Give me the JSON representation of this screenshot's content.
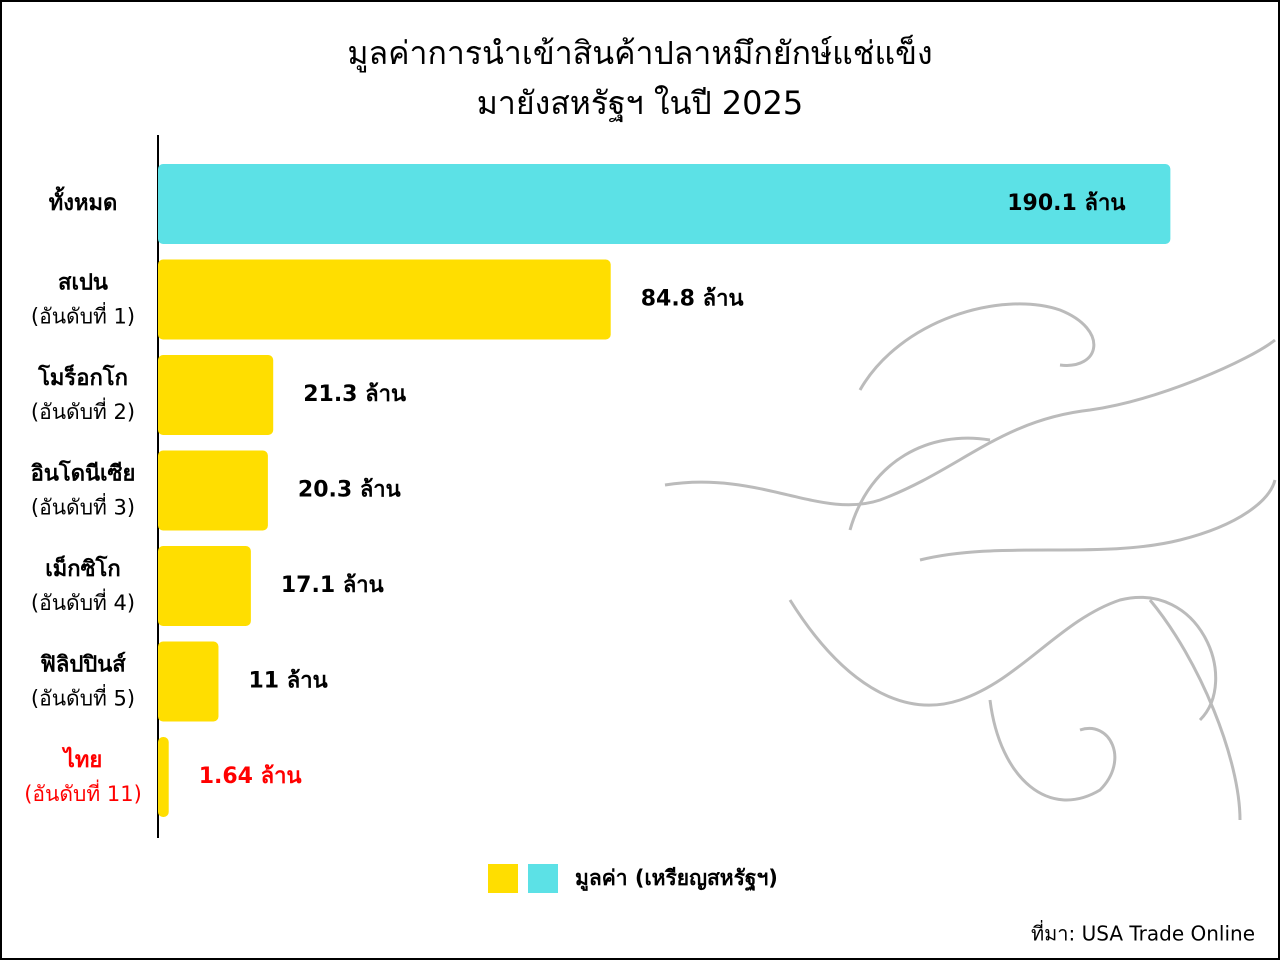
{
  "chart_data": {
    "type": "hbar",
    "title": [
      "มูลค่าการนำเข้าสินค้าปลาหมึกยักษ์แช่แข็ง",
      "มายังสหรัฐฯ ในปี 2025"
    ],
    "categories": [
      "ทั้งหมด",
      "สเปน",
      "โมร็อกโก",
      "อินโดนีเซีย",
      "เม็กซิโก",
      "ฟิลิปปินส์",
      "ไทย"
    ],
    "ranks": [
      null,
      "(อันดับที่ 1)",
      "(อันดับที่ 2)",
      "(อันดับที่ 3)",
      "(อันดับที่ 4)",
      "(อันดับที่ 5)",
      "(อันดับที่ 11)"
    ],
    "values": [
      190.1,
      84.8,
      21.3,
      20.3,
      17.1,
      11,
      1.64
    ],
    "value_labels": [
      "190.1 ล้าน",
      "84.8 ล้าน",
      "21.3 ล้าน",
      "20.3 ล้าน",
      "17.1 ล้าน",
      "11 ล้าน",
      "1.64 ล้าน"
    ],
    "colors": [
      "#5ce1e6",
      "#ffde00",
      "#ffde00",
      "#ffde00",
      "#ffde00",
      "#ffde00",
      "#ffde00"
    ],
    "label_colors": [
      "#000000",
      "#000000",
      "#000000",
      "#000000",
      "#000000",
      "#000000",
      "#ff0000"
    ],
    "xlim": [
      0,
      200
    ],
    "legend": {
      "colors": [
        "#ffde00",
        "#5ce1e6"
      ],
      "label": "มูลค่า (เหรียญสหรัฐฯ)"
    },
    "source": "ที่มา: USA Trade Online"
  }
}
